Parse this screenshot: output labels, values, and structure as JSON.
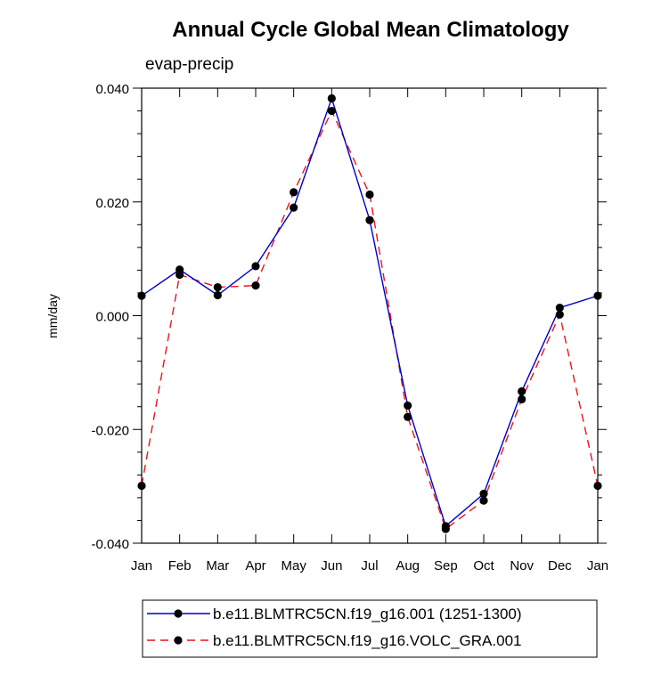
{
  "chart_data": {
    "type": "line",
    "title": "Annual Cycle Global Mean Climatology",
    "subtitle": "evap-precip",
    "ylabel": "mm/day",
    "xlabel": "",
    "categories": [
      "Jan",
      "Feb",
      "Mar",
      "Apr",
      "May",
      "Jun",
      "Jul",
      "Aug",
      "Sep",
      "Oct",
      "Nov",
      "Dec",
      "Jan"
    ],
    "ylim": [
      -0.04,
      0.04
    ],
    "yticks": [
      -0.04,
      -0.02,
      0.0,
      0.02,
      0.04
    ],
    "ytick_labels": [
      "-0.040",
      "-0.020",
      "0.000",
      "0.020",
      "0.040"
    ],
    "grid": false,
    "legend_position": "bottom",
    "series": [
      {
        "name": "b.e11.BLMTRC5CN.f19_g16.001 (1251-1300)",
        "color": "#0000cc",
        "dash": "solid",
        "marker": "circle",
        "values": [
          0.0035,
          0.0081,
          0.0036,
          0.0087,
          0.019,
          0.0382,
          0.0168,
          -0.0158,
          -0.037,
          -0.0313,
          -0.0133,
          0.0014,
          0.0035
        ]
      },
      {
        "name": "b.e11.BLMTRC5CN.f19_g16.VOLC_GRA.001",
        "color": "#e8141a",
        "dash": "dashed",
        "marker": "circle",
        "values": [
          -0.0299,
          0.0072,
          0.005,
          0.0053,
          0.0217,
          0.036,
          0.0213,
          -0.0178,
          -0.0375,
          -0.0325,
          -0.0147,
          0.0002,
          -0.0299
        ]
      }
    ]
  }
}
